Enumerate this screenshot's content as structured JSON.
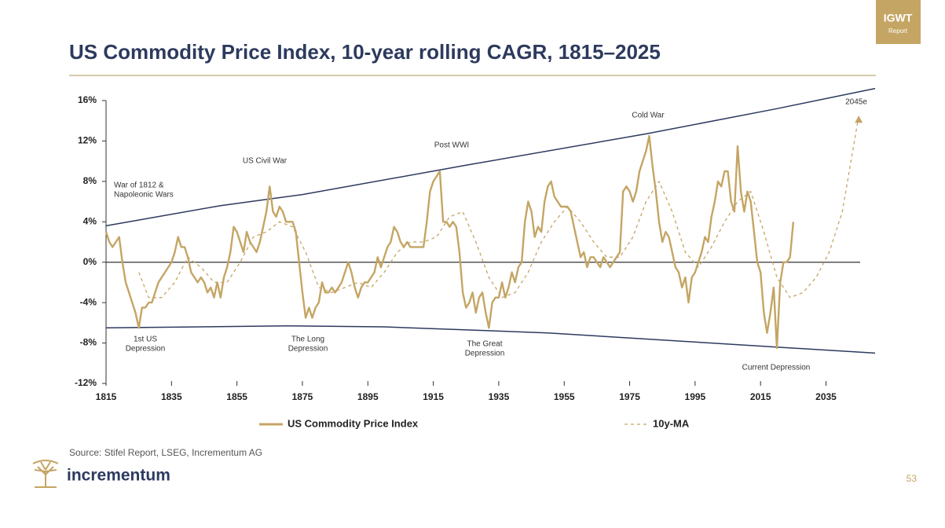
{
  "badge": {
    "title": "IGWT",
    "subtitle": "Report"
  },
  "chart_data": {
    "type": "line",
    "title": "US Commodity Price Index, 10-year rolling CAGR, 1815–2025",
    "xlim": [
      1815,
      2050
    ],
    "xticks": [
      1815,
      1835,
      1855,
      1875,
      1895,
      1915,
      1935,
      1955,
      1975,
      1995,
      2015,
      2035
    ],
    "ylim": [
      -12,
      16
    ],
    "yticks": [
      {
        "value": -12,
        "label": "-12%"
      },
      {
        "value": -8,
        "label": "-8%"
      },
      {
        "value": -4,
        "label": "-4%"
      },
      {
        "value": 0,
        "label": "0%"
      },
      {
        "value": 4,
        "label": "4%"
      },
      {
        "value": 8,
        "label": "8%"
      },
      {
        "value": 12,
        "label": "12%"
      },
      {
        "value": 16,
        "label": "16%"
      }
    ],
    "series": [
      {
        "name": "US Commodity Price Index",
        "color": "#c4a564",
        "style": "solid",
        "x": [
          1815,
          1816,
          1817,
          1818,
          1819,
          1820,
          1821,
          1822,
          1823,
          1824,
          1825,
          1826,
          1827,
          1828,
          1829,
          1830,
          1831,
          1832,
          1833,
          1834,
          1835,
          1836,
          1837,
          1838,
          1839,
          1840,
          1841,
          1842,
          1843,
          1844,
          1845,
          1846,
          1847,
          1848,
          1849,
          1850,
          1851,
          1852,
          1853,
          1854,
          1855,
          1856,
          1857,
          1858,
          1859,
          1860,
          1861,
          1862,
          1863,
          1864,
          1865,
          1866,
          1867,
          1868,
          1869,
          1870,
          1871,
          1872,
          1873,
          1874,
          1875,
          1876,
          1877,
          1878,
          1879,
          1880,
          1881,
          1882,
          1883,
          1884,
          1885,
          1886,
          1887,
          1888,
          1889,
          1890,
          1891,
          1892,
          1893,
          1894,
          1895,
          1896,
          1897,
          1898,
          1899,
          1900,
          1901,
          1902,
          1903,
          1904,
          1905,
          1906,
          1907,
          1908,
          1909,
          1910,
          1911,
          1912,
          1913,
          1914,
          1915,
          1916,
          1917,
          1918,
          1919,
          1920,
          1921,
          1922,
          1923,
          1924,
          1925,
          1926,
          1927,
          1928,
          1929,
          1930,
          1931,
          1932,
          1933,
          1934,
          1935,
          1936,
          1937,
          1938,
          1939,
          1940,
          1941,
          1942,
          1943,
          1944,
          1945,
          1946,
          1947,
          1948,
          1949,
          1950,
          1951,
          1952,
          1953,
          1954,
          1955,
          1956,
          1957,
          1958,
          1959,
          1960,
          1961,
          1962,
          1963,
          1964,
          1965,
          1966,
          1967,
          1968,
          1969,
          1970,
          1971,
          1972,
          1973,
          1974,
          1975,
          1976,
          1977,
          1978,
          1979,
          1980,
          1981,
          1982,
          1983,
          1984,
          1985,
          1986,
          1987,
          1988,
          1989,
          1990,
          1991,
          1992,
          1993,
          1994,
          1995,
          1996,
          1997,
          1998,
          1999,
          2000,
          2001,
          2002,
          2003,
          2004,
          2005,
          2006,
          2007,
          2008,
          2009,
          2010,
          2011,
          2012,
          2013,
          2014,
          2015,
          2016,
          2017,
          2018,
          2019,
          2020,
          2021,
          2022,
          2023,
          2024,
          2025
        ],
        "values": [
          3,
          2,
          1.5,
          2,
          2.5,
          0,
          -2,
          -3,
          -4,
          -5,
          -6.5,
          -4.5,
          -4.5,
          -4,
          -4,
          -3,
          -2,
          -1.5,
          -1,
          -0.5,
          0,
          1,
          2.5,
          1.5,
          1.5,
          0.5,
          -1,
          -1.5,
          -2,
          -1.5,
          -2,
          -3,
          -2.5,
          -3.5,
          -2,
          -3.5,
          -1.5,
          -0.5,
          1,
          3.5,
          3,
          2,
          1,
          3,
          2,
          1.5,
          1,
          2,
          3.5,
          5,
          7.5,
          5,
          4.5,
          5.5,
          5,
          4,
          4,
          4,
          3,
          0,
          -3,
          -5.5,
          -4.5,
          -5.5,
          -4.5,
          -4,
          -2,
          -3,
          -3,
          -2.5,
          -3,
          -2.5,
          -2,
          -1,
          0,
          -1,
          -2.5,
          -3.5,
          -2.5,
          -2,
          -2,
          -1.5,
          -1,
          0.5,
          -0.5,
          0.5,
          1.5,
          2,
          3.5,
          3,
          2,
          1.5,
          2,
          1.5,
          1.5,
          1.5,
          1.5,
          1.5,
          4,
          7,
          8,
          8.5,
          9,
          4,
          4,
          3.5,
          4,
          3.5,
          1,
          -3,
          -4.5,
          -4,
          -3,
          -5,
          -3.5,
          -3,
          -5,
          -6.5,
          -4,
          -3.5,
          -3.5,
          -2,
          -3.5,
          -2.5,
          -1,
          -2,
          -0.5,
          0,
          4,
          6,
          5,
          2.5,
          3.5,
          3,
          6,
          7.5,
          8,
          6.5,
          6,
          5.5,
          5.5,
          5.5,
          5,
          3.5,
          2,
          0.5,
          1,
          -0.5,
          0.5,
          0.5,
          0,
          -0.5,
          0.5,
          0,
          -0.5,
          0,
          0.5,
          1,
          7,
          7.5,
          7,
          6,
          7,
          9,
          10,
          11,
          12.5,
          9.5,
          7,
          4,
          2,
          3,
          2.5,
          1,
          -0.5,
          -1,
          -2.5,
          -1.5,
          -4,
          -1.5,
          -1,
          0,
          1,
          2.5,
          2,
          4.5,
          6,
          8,
          7.5,
          9,
          9,
          6,
          5,
          11.5,
          7,
          5,
          7,
          6,
          3,
          0,
          -1,
          -5,
          -7,
          -5,
          -2.5,
          -8.5,
          -2,
          0,
          0,
          0.5,
          4
        ]
      },
      {
        "name": "10y-MA",
        "color": "#c4a564",
        "style": "dashed",
        "x": [
          1825,
          1828,
          1832,
          1836,
          1840,
          1844,
          1848,
          1852,
          1856,
          1860,
          1864,
          1868,
          1872,
          1876,
          1880,
          1884,
          1888,
          1892,
          1896,
          1900,
          1904,
          1908,
          1912,
          1916,
          1920,
          1924,
          1928,
          1932,
          1936,
          1940,
          1944,
          1948,
          1952,
          1956,
          1960,
          1964,
          1968,
          1972,
          1976,
          1980,
          1984,
          1988,
          1992,
          1996,
          2000,
          2004,
          2008,
          2012,
          2016,
          2020,
          2024,
          2028,
          2032,
          2036,
          2040,
          2045
        ],
        "values": [
          -1,
          -3.5,
          -3.5,
          -2,
          0.5,
          -0.5,
          -2,
          -2,
          0,
          2.5,
          3,
          4,
          3.5,
          1,
          -2.5,
          -3,
          -2.5,
          -2,
          -2.5,
          -1,
          1,
          2,
          2,
          2.5,
          4.5,
          5,
          2,
          -1.5,
          -3.5,
          -3,
          -1,
          2,
          4,
          5.5,
          4,
          2,
          0.5,
          0.5,
          2.5,
          6,
          8,
          5,
          1,
          -0.5,
          1.5,
          4,
          6,
          7,
          3,
          -1.5,
          -3.5,
          -3,
          -1.5,
          1,
          5,
          14.5
        ]
      }
    ],
    "bands": [
      {
        "x": [
          1815,
          1850,
          1875,
          1925,
          1980,
          2020,
          2050
        ],
        "values": [
          3.6,
          5.6,
          6.7,
          9.6,
          12.7,
          15.2,
          17.2
        ]
      },
      {
        "x": [
          1815,
          1870,
          1900,
          1950,
          2000,
          2050
        ],
        "values": [
          -6.5,
          -6.3,
          -6.4,
          -7,
          -8,
          -9
        ]
      }
    ],
    "annotations": [
      [
        "War of 1812 &",
        "Napoleonic Wars"
      ],
      [
        "US Civil War"
      ],
      [
        "Post WWI"
      ],
      [
        "Cold War"
      ],
      [
        "2045e"
      ],
      [
        "1st US",
        "Depression"
      ],
      [
        "The Long",
        "Depression"
      ],
      [
        "The Great",
        "Depression"
      ],
      [
        "Current Depression"
      ]
    ]
  },
  "source": "Source: Stifel Report, LSEG, Incrementum AG",
  "logo": "incrementum",
  "page_number": "53"
}
